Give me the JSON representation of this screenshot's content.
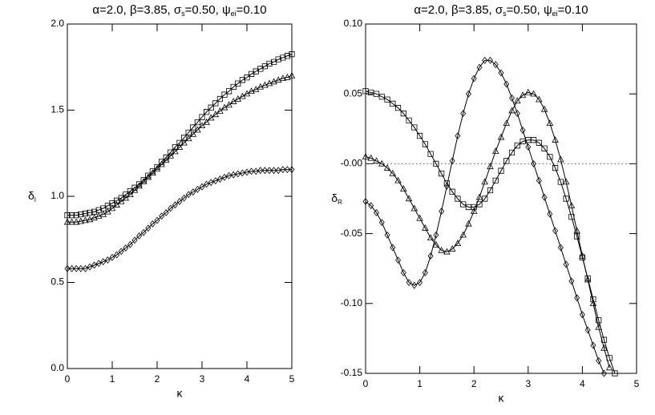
{
  "chart_data": [
    {
      "type": "line",
      "title_parts": [
        "α=2.0,  β=3.85,  σ",
        "s",
        "=0.50,  ψ",
        "ei",
        "=0.10"
      ],
      "xlabel": "κ",
      "ylabel": "δ",
      "ylabel_sub": "I",
      "x": [
        0,
        0.1,
        0.2,
        0.3,
        0.4,
        0.5,
        0.6,
        0.7,
        0.8,
        0.9,
        1,
        1.1,
        1.2,
        1.3,
        1.4,
        1.5,
        1.6,
        1.7,
        1.8,
        1.9,
        2,
        2.1,
        2.2,
        2.3,
        2.4,
        2.5,
        2.6,
        2.7,
        2.8,
        2.9,
        3,
        3.1,
        3.2,
        3.3,
        3.4,
        3.5,
        3.6,
        3.7,
        3.8,
        3.9,
        4,
        4.1,
        4.2,
        4.3,
        4.4,
        4.5,
        4.6,
        4.7,
        4.8,
        4.9,
        5
      ],
      "xlim": [
        0,
        5
      ],
      "xticks": [
        0,
        1,
        2,
        3,
        4,
        5
      ],
      "ylim": [
        0,
        2
      ],
      "yticks": [
        {
          "value": 0,
          "label": "0.0"
        },
        {
          "value": 0.5,
          "label": "0.5"
        },
        {
          "value": 1,
          "label": "1.0"
        },
        {
          "value": 1.5,
          "label": "1.5"
        },
        {
          "value": 2,
          "label": "2.0"
        }
      ],
      "series": [
        {
          "color": "#000000",
          "marker": "diamond",
          "values": [
            0.58,
            0.58,
            0.58,
            0.58,
            0.58,
            0.59,
            0.6,
            0.61,
            0.62,
            0.63,
            0.645,
            0.66,
            0.68,
            0.7,
            0.72,
            0.745,
            0.77,
            0.79,
            0.815,
            0.84,
            0.86,
            0.885,
            0.905,
            0.93,
            0.95,
            0.97,
            0.99,
            1.01,
            1.025,
            1.04,
            1.055,
            1.07,
            1.08,
            1.09,
            1.1,
            1.11,
            1.12,
            1.125,
            1.13,
            1.135,
            1.14,
            1.145,
            1.145,
            1.15,
            1.15,
            1.15,
            1.15,
            1.15,
            1.155,
            1.155,
            1.155
          ]
        },
        {
          "color": "#000000",
          "marker": "triangle",
          "values": [
            0.85,
            0.85,
            0.85,
            0.855,
            0.86,
            0.865,
            0.875,
            0.885,
            0.895,
            0.91,
            0.93,
            0.95,
            0.97,
            0.99,
            1.01,
            1.035,
            1.06,
            1.085,
            1.11,
            1.135,
            1.16,
            1.185,
            1.21,
            1.235,
            1.26,
            1.285,
            1.31,
            1.335,
            1.36,
            1.385,
            1.41,
            1.43,
            1.455,
            1.475,
            1.495,
            1.515,
            1.53,
            1.55,
            1.565,
            1.58,
            1.595,
            1.61,
            1.62,
            1.635,
            1.645,
            1.655,
            1.665,
            1.675,
            1.685,
            1.69,
            1.7
          ]
        },
        {
          "color": "#000000",
          "marker": "square",
          "values": [
            0.89,
            0.89,
            0.89,
            0.895,
            0.9,
            0.905,
            0.91,
            0.92,
            0.93,
            0.945,
            0.96,
            0.975,
            0.99,
            1.01,
            1.03,
            1.05,
            1.07,
            1.095,
            1.12,
            1.145,
            1.17,
            1.2,
            1.225,
            1.255,
            1.285,
            1.31,
            1.34,
            1.37,
            1.4,
            1.43,
            1.46,
            1.49,
            1.515,
            1.54,
            1.565,
            1.59,
            1.61,
            1.635,
            1.655,
            1.675,
            1.69,
            1.71,
            1.725,
            1.74,
            1.755,
            1.77,
            1.78,
            1.795,
            1.805,
            1.815,
            1.825
          ]
        }
      ]
    },
    {
      "type": "line",
      "title_parts": [
        "α=2.0,  β=3.85,  σ",
        "s",
        "=0.50,  ψ",
        "ei",
        "=0.10"
      ],
      "xlabel": "κ",
      "ylabel": "δ",
      "ylabel_sub": "R",
      "x": [
        0,
        0.1,
        0.2,
        0.3,
        0.4,
        0.5,
        0.6,
        0.7,
        0.8,
        0.9,
        1,
        1.1,
        1.2,
        1.3,
        1.4,
        1.5,
        1.6,
        1.7,
        1.8,
        1.9,
        2,
        2.1,
        2.2,
        2.3,
        2.4,
        2.5,
        2.6,
        2.7,
        2.8,
        2.9,
        3,
        3.1,
        3.2,
        3.3,
        3.4,
        3.5,
        3.6,
        3.7,
        3.8,
        3.9,
        4,
        4.1,
        4.2,
        4.3,
        4.4,
        4.5,
        4.6,
        4.7,
        4.8,
        4.9,
        5
      ],
      "xlim": [
        0,
        5
      ],
      "xticks": [
        0,
        1,
        2,
        3,
        4,
        5
      ],
      "ylim": [
        -0.15,
        0.1
      ],
      "yticks": [
        {
          "value": 0.1,
          "label": "0.10"
        },
        {
          "value": 0.05,
          "label": "0.05"
        },
        {
          "value": 0,
          "label": "-0.00"
        },
        {
          "value": -0.05,
          "label": "-0.05"
        },
        {
          "value": -0.1,
          "label": "-0.10"
        },
        {
          "value": -0.15,
          "label": "-0.15"
        }
      ],
      "hline": 0,
      "series": [
        {
          "color": "#000000",
          "marker": "diamond",
          "values": [
            -0.027,
            -0.03,
            -0.035,
            -0.042,
            -0.051,
            -0.06,
            -0.069,
            -0.078,
            -0.085,
            -0.087,
            -0.085,
            -0.078,
            -0.066,
            -0.051,
            -0.034,
            -0.016,
            0.002,
            0.02,
            0.036,
            0.05,
            0.061,
            0.069,
            0.074,
            0.074,
            0.071,
            0.065,
            0.057,
            0.047,
            0.036,
            0.024,
            0.012,
            0,
            -0.012,
            -0.024,
            -0.036,
            -0.048,
            -0.06,
            -0.072,
            -0.084,
            -0.096,
            -0.108,
            -0.119,
            -0.13,
            -0.141,
            -0.15,
            null,
            null,
            null,
            null,
            null,
            null
          ]
        },
        {
          "color": "#000000",
          "marker": "triangle",
          "values": [
            0.005,
            0.004,
            0.002,
            0,
            -0.003,
            -0.007,
            -0.012,
            -0.018,
            -0.025,
            -0.032,
            -0.039,
            -0.046,
            -0.053,
            -0.058,
            -0.062,
            -0.063,
            -0.061,
            -0.057,
            -0.051,
            -0.043,
            -0.034,
            -0.024,
            -0.013,
            -0.002,
            0.009,
            0.019,
            0.029,
            0.038,
            0.045,
            0.049,
            0.051,
            0.05,
            0.046,
            0.039,
            0.029,
            0.017,
            0.003,
            -0.013,
            -0.03,
            -0.048,
            -0.066,
            -0.083,
            -0.1,
            -0.117,
            -0.132,
            -0.146,
            null,
            null,
            null,
            null,
            null
          ]
        },
        {
          "color": "#000000",
          "marker": "square",
          "values": [
            0.052,
            0.051,
            0.05,
            0.048,
            0.046,
            0.043,
            0.04,
            0.036,
            0.031,
            0.026,
            0.02,
            0.014,
            0.007,
            0,
            -0.007,
            -0.014,
            -0.02,
            -0.025,
            -0.029,
            -0.031,
            -0.031,
            -0.029,
            -0.025,
            -0.019,
            -0.012,
            -0.005,
            0.002,
            0.008,
            0.013,
            0.016,
            0.017,
            0.017,
            0.015,
            0.011,
            0.005,
            -0.003,
            -0.013,
            -0.025,
            -0.038,
            -0.052,
            -0.067,
            -0.082,
            -0.097,
            -0.112,
            -0.126,
            -0.139,
            -0.15,
            null,
            null,
            null,
            null
          ]
        }
      ]
    }
  ]
}
